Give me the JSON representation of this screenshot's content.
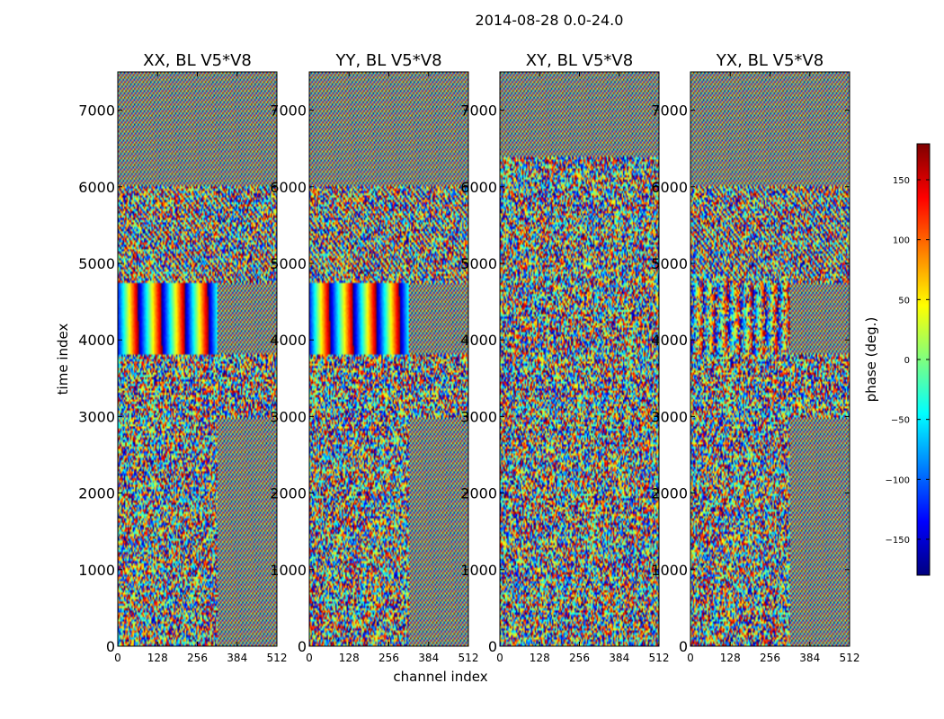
{
  "figure": {
    "suptitle": "2014-08-28 0.0-24.0"
  },
  "chart_data": [
    {
      "type": "heatmap",
      "title": "XX, BL V5*V8",
      "xlabel": "channel index",
      "ylabel": "time index",
      "xlim": [
        0,
        512
      ],
      "ylim": [
        0,
        7500
      ],
      "xticks": [
        0,
        128,
        256,
        384,
        512
      ],
      "yticks": [
        0,
        1000,
        2000,
        3000,
        4000,
        5000,
        6000,
        7000
      ],
      "value_range": [
        -180,
        180
      ],
      "regions": [
        {
          "t": [
            0,
            3000
          ],
          "ch": [
            0,
            320
          ],
          "pattern": "noise"
        },
        {
          "t": [
            0,
            3000
          ],
          "ch": [
            320,
            512
          ],
          "pattern": "fringe"
        },
        {
          "t": [
            3000,
            3800
          ],
          "ch": [
            0,
            512
          ],
          "pattern": "noise"
        },
        {
          "t": [
            3800,
            4750
          ],
          "ch": [
            0,
            320
          ],
          "pattern": "smooth-bands"
        },
        {
          "t": [
            3800,
            4750
          ],
          "ch": [
            320,
            512
          ],
          "pattern": "fringe"
        },
        {
          "t": [
            4750,
            6000
          ],
          "ch": [
            0,
            512
          ],
          "pattern": "mixed"
        },
        {
          "t": [
            6000,
            7500
          ],
          "ch": [
            0,
            512
          ],
          "pattern": "fringe"
        }
      ]
    },
    {
      "type": "heatmap",
      "title": "YY, BL V5*V8",
      "xlabel": "",
      "ylabel": "",
      "xlim": [
        0,
        512
      ],
      "ylim": [
        0,
        7500
      ],
      "xticks": [
        0,
        128,
        256,
        384,
        512
      ],
      "yticks": [
        0,
        1000,
        2000,
        3000,
        4000,
        5000,
        6000,
        7000
      ],
      "value_range": [
        -180,
        180
      ],
      "regions": [
        {
          "t": [
            0,
            3000
          ],
          "ch": [
            0,
            320
          ],
          "pattern": "noise"
        },
        {
          "t": [
            0,
            3000
          ],
          "ch": [
            320,
            512
          ],
          "pattern": "fringe"
        },
        {
          "t": [
            3000,
            3800
          ],
          "ch": [
            0,
            512
          ],
          "pattern": "noise"
        },
        {
          "t": [
            3800,
            4750
          ],
          "ch": [
            0,
            320
          ],
          "pattern": "smooth-bands"
        },
        {
          "t": [
            3800,
            4750
          ],
          "ch": [
            320,
            512
          ],
          "pattern": "fringe"
        },
        {
          "t": [
            4750,
            6000
          ],
          "ch": [
            0,
            512
          ],
          "pattern": "mixed"
        },
        {
          "t": [
            6000,
            7500
          ],
          "ch": [
            0,
            512
          ],
          "pattern": "fringe"
        }
      ]
    },
    {
      "type": "heatmap",
      "title": "XY, BL V5*V8",
      "xlabel": "",
      "ylabel": "",
      "xlim": [
        0,
        512
      ],
      "ylim": [
        0,
        7500
      ],
      "xticks": [
        0,
        128,
        256,
        384,
        512
      ],
      "yticks": [
        0,
        1000,
        2000,
        3000,
        4000,
        5000,
        6000,
        7000
      ],
      "value_range": [
        -180,
        180
      ],
      "regions": [
        {
          "t": [
            0,
            6400
          ],
          "ch": [
            0,
            512
          ],
          "pattern": "noise"
        },
        {
          "t": [
            6400,
            7500
          ],
          "ch": [
            0,
            512
          ],
          "pattern": "fringe"
        }
      ]
    },
    {
      "type": "heatmap",
      "title": "YX, BL V5*V8",
      "xlabel": "",
      "ylabel": "",
      "xlim": [
        0,
        512
      ],
      "ylim": [
        0,
        7500
      ],
      "xticks": [
        0,
        128,
        256,
        384,
        512
      ],
      "yticks": [
        0,
        1000,
        2000,
        3000,
        4000,
        5000,
        6000,
        7000
      ],
      "value_range": [
        -180,
        180
      ],
      "regions": [
        {
          "t": [
            0,
            3000
          ],
          "ch": [
            0,
            320
          ],
          "pattern": "noise"
        },
        {
          "t": [
            0,
            3000
          ],
          "ch": [
            320,
            512
          ],
          "pattern": "fringe"
        },
        {
          "t": [
            3000,
            3800
          ],
          "ch": [
            0,
            512
          ],
          "pattern": "noise"
        },
        {
          "t": [
            3800,
            4750
          ],
          "ch": [
            0,
            320
          ],
          "pattern": "faint-bands"
        },
        {
          "t": [
            3800,
            4750
          ],
          "ch": [
            320,
            512
          ],
          "pattern": "fringe"
        },
        {
          "t": [
            4750,
            6000
          ],
          "ch": [
            0,
            512
          ],
          "pattern": "mixed"
        },
        {
          "t": [
            6000,
            7500
          ],
          "ch": [
            0,
            512
          ],
          "pattern": "fringe"
        }
      ]
    }
  ],
  "colorbar": {
    "label": "phase (deg.)",
    "range": [
      -180,
      180
    ],
    "ticks": [
      150,
      100,
      50,
      0,
      -50,
      -100,
      -150
    ],
    "tick_labels": [
      "150",
      "100",
      "50",
      "0",
      "−50",
      "−100",
      "−150"
    ],
    "colormap": "jet"
  }
}
